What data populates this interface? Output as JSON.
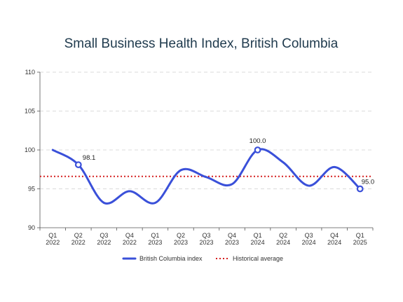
{
  "chart_data": {
    "type": "line",
    "title": "Small Business Health Index, British Columbia",
    "categories": [
      [
        "Q1",
        "2022"
      ],
      [
        "Q2",
        "2022"
      ],
      [
        "Q3",
        "2022"
      ],
      [
        "Q4",
        "2022"
      ],
      [
        "Q1",
        "2023"
      ],
      [
        "Q2",
        "2023"
      ],
      [
        "Q3",
        "2023"
      ],
      [
        "Q4",
        "2023"
      ],
      [
        "Q1",
        "2024"
      ],
      [
        "Q2",
        "2024"
      ],
      [
        "Q3",
        "2024"
      ],
      [
        "Q4",
        "2024"
      ],
      [
        "Q1",
        "2025"
      ]
    ],
    "series": [
      {
        "name": "British Columbia index",
        "values": [
          100.0,
          98.1,
          93.2,
          94.7,
          93.2,
          97.4,
          96.5,
          95.6,
          100.0,
          98.4,
          95.4,
          97.8,
          95.0
        ],
        "color": "#3a50d9"
      }
    ],
    "reference_line": {
      "name": "Historical average",
      "value": 96.6,
      "color": "#d62020"
    },
    "annotations": [
      {
        "index": 1,
        "label": "98.1"
      },
      {
        "index": 8,
        "label": "100.0"
      },
      {
        "index": 12,
        "label": "95.0"
      }
    ],
    "yticks": [
      "90",
      "95",
      "100",
      "105",
      "110"
    ],
    "ylim": [
      90,
      110
    ],
    "grid": true,
    "legend_position": "bottom-center"
  }
}
